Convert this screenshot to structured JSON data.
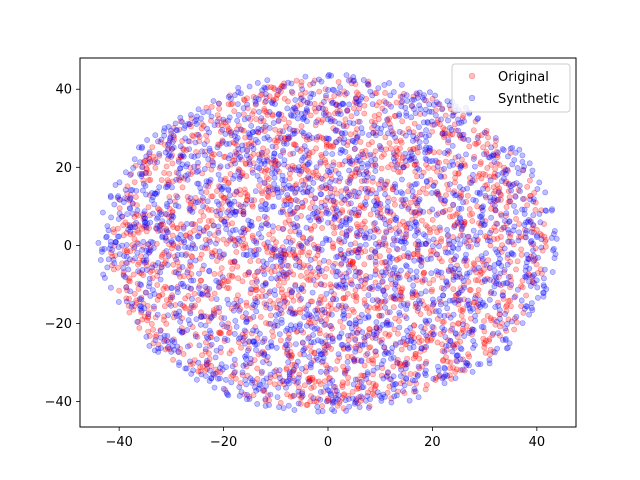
{
  "chart_data": {
    "type": "scatter",
    "title": "",
    "xlabel": "",
    "ylabel": "",
    "xlim": [
      -47.5,
      47.5
    ],
    "ylim": [
      -46.5,
      48.0
    ],
    "xticks": [
      -40,
      -20,
      0,
      20,
      40
    ],
    "yticks": [
      -40,
      -20,
      0,
      20,
      40
    ],
    "xtick_labels": [
      "−40",
      "−20",
      "0",
      "20",
      "40"
    ],
    "ytick_labels": [
      "−40",
      "−20",
      "0",
      "20",
      "40"
    ],
    "grid": false,
    "legend": "upper-right",
    "series": [
      {
        "name": "Original",
        "color": "#ff0000",
        "alpha": 0.25,
        "distribution": "points fill an ellipse centered near (0, 0), x from about -42 to 42, y from about -42 to 43",
        "x_range": [
          -42,
          42
        ],
        "y_range": [
          -42,
          43
        ],
        "point_count_estimate": 4500
      },
      {
        "name": "Synthetic",
        "color": "#0000ff",
        "alpha": 0.25,
        "distribution": "points fill an ellipse centered near (0, 0), x from about -44 to 44, y from about -43 to 44",
        "x_range": [
          -44,
          44
        ],
        "y_range": [
          -43,
          44
        ],
        "point_count_estimate": 4500
      }
    ]
  }
}
